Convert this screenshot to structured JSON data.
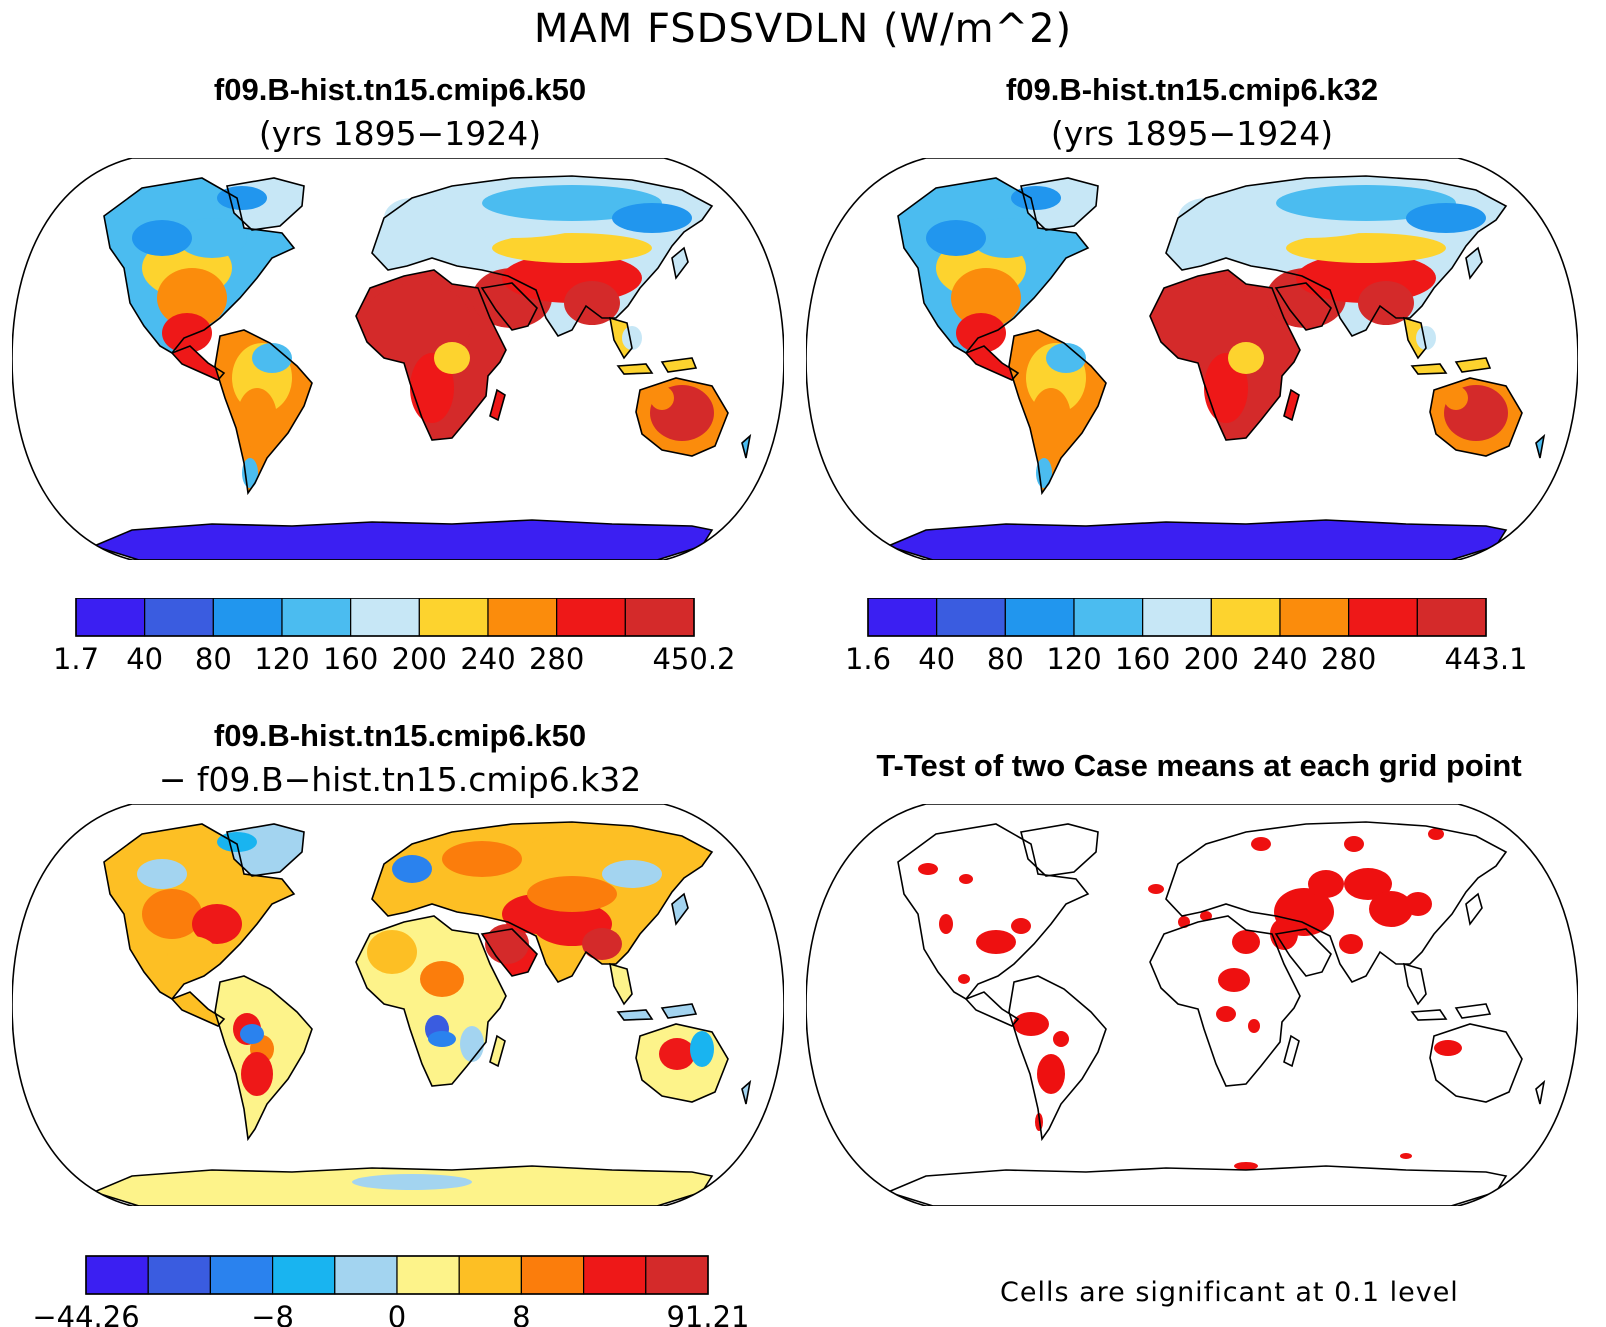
{
  "title": "MAM FSDSVDLN (W/m^2)",
  "panels": [
    {
      "title": "f09.B-hist.tn15.cmip6.k50",
      "subtitle": "(yrs 1895−1924)",
      "colorbar": {
        "colors": [
          "#3b1ff2",
          "#3a5ce0",
          "#2196ee",
          "#4bbcf0",
          "#c7e7f6",
          "#fdd32e",
          "#fb8c0c",
          "#ee1818",
          "#d42a2a"
        ],
        "labels": [
          "1.7",
          "40",
          "80",
          "120",
          "160",
          "200",
          "240",
          "280",
          "450.2"
        ]
      }
    },
    {
      "title": "f09.B-hist.tn15.cmip6.k32",
      "subtitle": "(yrs 1895−1924)",
      "colorbar": {
        "colors": [
          "#3b1ff2",
          "#3a5ce0",
          "#2196ee",
          "#4bbcf0",
          "#c7e7f6",
          "#fdd32e",
          "#fb8c0c",
          "#ee1818",
          "#d42a2a"
        ],
        "labels": [
          "1.6",
          "40",
          "80",
          "120",
          "160",
          "200",
          "240",
          "280",
          "443.1"
        ]
      }
    },
    {
      "title": "f09.B-hist.tn15.cmip6.k50",
      "subtitle": "− f09.B−hist.tn15.cmip6.k32",
      "colorbar": {
        "colors": [
          "#3b1ff2",
          "#3a5ce0",
          "#2a82ee",
          "#19b4f0",
          "#a3d4f0",
          "#fdf38a",
          "#fdbf24",
          "#fb7d0c",
          "#ee1818",
          "#d42a2a"
        ],
        "labels": [
          "−44.26",
          "−8",
          "0",
          "8",
          "91.21"
        ]
      }
    },
    {
      "title": "T-Test of two Case means at each grid point",
      "note": "Cells are significant at 0.1 level",
      "significant_color": "#ee1010"
    }
  ]
}
